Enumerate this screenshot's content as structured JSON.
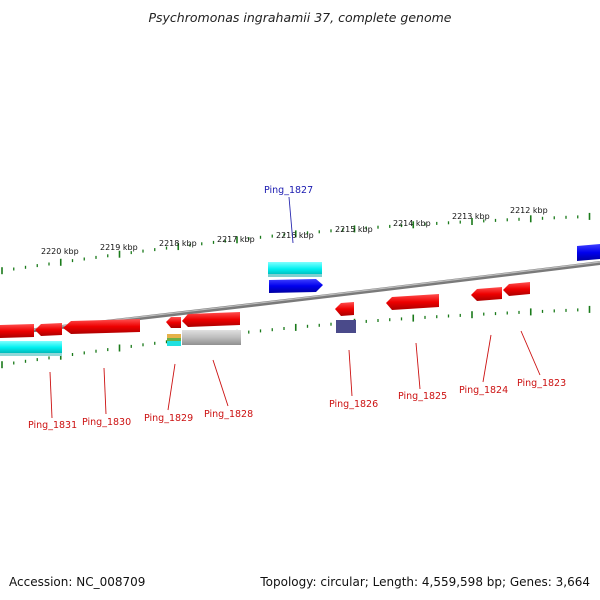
{
  "title": "Psychromonas ingrahamii 37, complete genome",
  "footer": {
    "accession": "Accession: NC_008709",
    "summary": "Topology: circular; Length: 4,559,598 bp; Genes: 3,664"
  },
  "colors": {
    "backbone": "#8a8a8a",
    "forward_gene": "#0000ee",
    "reverse_gene": "#ee0000",
    "forward_label": "#1a1ab0",
    "reverse_label": "#cc1111",
    "cyan_feature": "#00f0f0",
    "grey_feature": "#b8b8b8",
    "slate_feature": "#4a4a8a",
    "tick": "#1a7a1a"
  },
  "kbp_labels": [
    "2220 kbp",
    "2219 kbp",
    "2218 kbp",
    "2217 kbp",
    "2216 kbp",
    "2215 kbp",
    "2214 kbp",
    "2213 kbp",
    "2212 kbp"
  ],
  "gene_labels": [
    {
      "id": "g1827",
      "text": "Ping_1827",
      "strand": "forward"
    },
    {
      "id": "g1831",
      "text": "Ping_1831",
      "strand": "reverse"
    },
    {
      "id": "g1830",
      "text": "Ping_1830",
      "strand": "reverse"
    },
    {
      "id": "g1829",
      "text": "Ping_1829",
      "strand": "reverse"
    },
    {
      "id": "g1828",
      "text": "Ping_1828",
      "strand": "reverse"
    },
    {
      "id": "g1826",
      "text": "Ping_1826",
      "strand": "reverse"
    },
    {
      "id": "g1825",
      "text": "Ping_1825",
      "strand": "reverse"
    },
    {
      "id": "g1824",
      "text": "Ping_1824",
      "strand": "reverse"
    },
    {
      "id": "g1823",
      "text": "Ping_1823",
      "strand": "reverse"
    }
  ]
}
